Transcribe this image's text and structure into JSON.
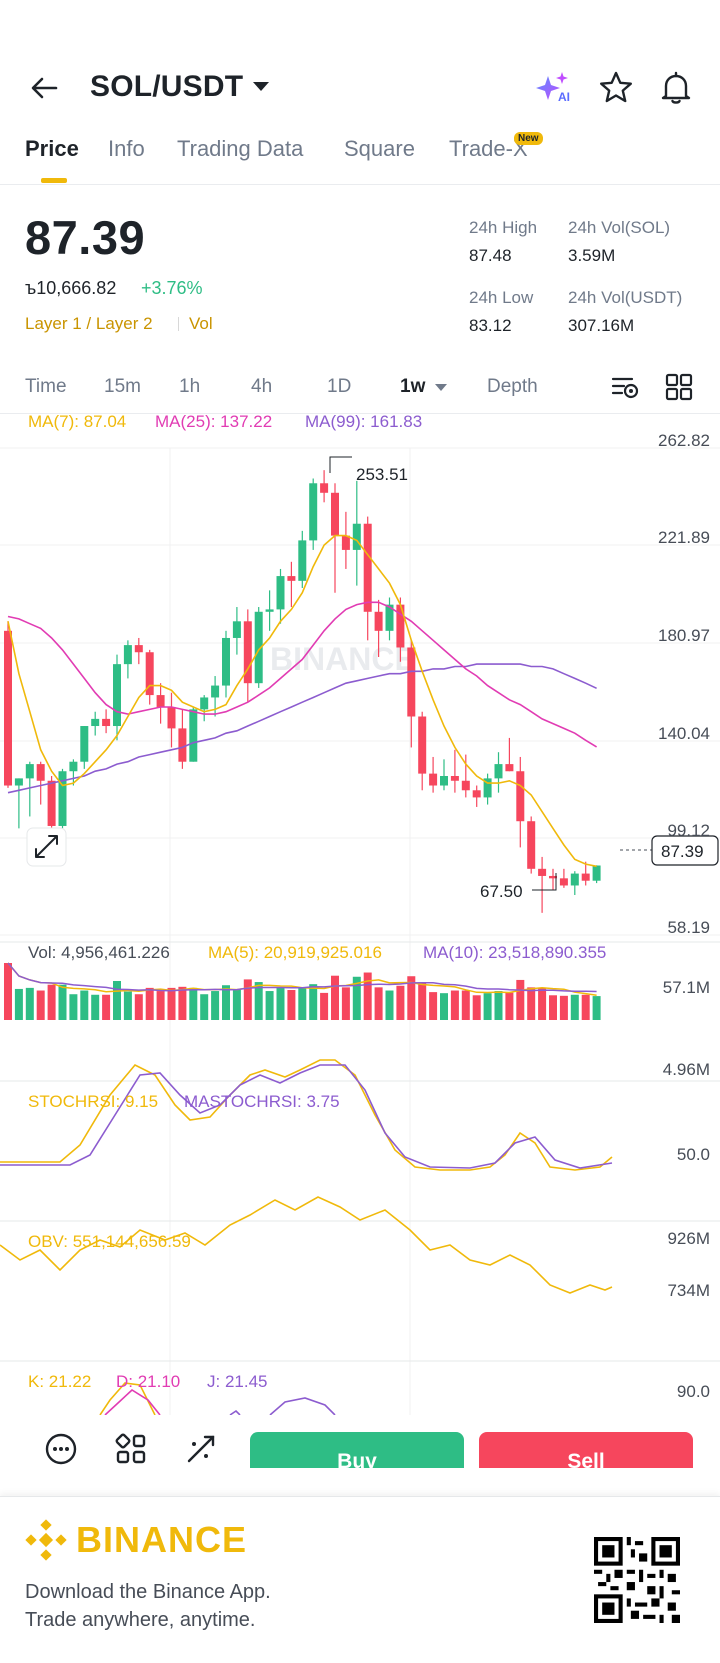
{
  "header": {
    "title": "SOL/USDT",
    "ai_label": "AI"
  },
  "tabs": [
    {
      "label": "Price"
    },
    {
      "label": "Info"
    },
    {
      "label": "Trading Data"
    },
    {
      "label": "Square"
    },
    {
      "label": "Trade-X"
    }
  ],
  "new_badge": "New",
  "price": {
    "last": "87.39",
    "local": "ъ10,666.82",
    "change": "+3.76%",
    "tag_layer": "Layer 1 / Layer 2",
    "tag_vol": "Vol"
  },
  "stats": {
    "high_label": "24h High",
    "high_value": "87.48",
    "vol_sol_label": "24h Vol(SOL)",
    "vol_sol_value": "3.59M",
    "low_label": "24h Low",
    "low_value": "83.12",
    "vol_usdt_label": "24h Vol(USDT)",
    "vol_usdt_value": "307.16M"
  },
  "intervals": [
    {
      "label": "Time"
    },
    {
      "label": "15m"
    },
    {
      "label": "1h"
    },
    {
      "label": "4h"
    },
    {
      "label": "1D"
    },
    {
      "label": "1w"
    },
    {
      "label": "Depth"
    }
  ],
  "legend": {
    "ma7": "MA(7): 87.04",
    "ma25": "MA(25): 137.22",
    "ma99": "MA(99): 161.83",
    "vol": "Vol: 4,956,461.226",
    "vol_ma5": "MA(5): 20,919,925.016",
    "vol_ma10": "MA(10): 23,518,890.355",
    "stoch": "STOCHRSI: 9.15",
    "mastoch": "MASTOCHRSI: 3.75",
    "obv": "OBV: 551,144,656.59",
    "k": "K: 21.22",
    "d": "D: 21.10",
    "j": "J: 21.45"
  },
  "axis": {
    "price_ticks": [
      "262.82",
      "221.89",
      "180.97",
      "140.04",
      "99.12",
      "58.19"
    ],
    "vol_ticks": [
      "57.1M",
      "4.96M"
    ],
    "stoch_ticks": [
      "50.0"
    ],
    "obv_ticks": [
      "926M",
      "734M"
    ],
    "kdj_ticks": [
      "90.0"
    ]
  },
  "annotations": {
    "high": "253.51",
    "low": "67.50",
    "current": "87.39"
  },
  "watermark": "BINANCE",
  "actions": {
    "buy": "Buy",
    "sell": "Sell"
  },
  "footer": {
    "brand": "BINANCE",
    "line1": "Download the Binance App.",
    "line2": "Trade anywhere, anytime."
  },
  "colors": {
    "up": "#2ebd85",
    "down": "#f6465d",
    "ma7": "#f0b90b",
    "ma25": "#e13cb3",
    "ma99": "#8c5ccf",
    "brand": "#f0b90b"
  },
  "chart_data": {
    "type": "candlestick",
    "interval": "1w",
    "symbol": "SOL/USDT",
    "ylim": [
      58.19,
      262.82
    ],
    "high_marker": 253.51,
    "low_marker": 67.5,
    "candles": [
      [
        186,
        190,
        120,
        121
      ],
      [
        121,
        124,
        103,
        124
      ],
      [
        124,
        131,
        108,
        130
      ],
      [
        130,
        131,
        113,
        123
      ],
      [
        123,
        125,
        96,
        104
      ],
      [
        104,
        128,
        99,
        127
      ],
      [
        127,
        132,
        121,
        131
      ],
      [
        131,
        146,
        128,
        146
      ],
      [
        146,
        152,
        142,
        149
      ],
      [
        149,
        153,
        143,
        146
      ],
      [
        146,
        176,
        140,
        172
      ],
      [
        172,
        182,
        166,
        180
      ],
      [
        180,
        183,
        172,
        177
      ],
      [
        177,
        178,
        155,
        159
      ],
      [
        159,
        164,
        147,
        154
      ],
      [
        154,
        160,
        137,
        145
      ],
      [
        145,
        153,
        128,
        131
      ],
      [
        131,
        154,
        131,
        153
      ],
      [
        153,
        159,
        148,
        158
      ],
      [
        158,
        167,
        150,
        163
      ],
      [
        163,
        186,
        158,
        183
      ],
      [
        183,
        196,
        176,
        190
      ],
      [
        190,
        195,
        156,
        164
      ],
      [
        164,
        196,
        162,
        194
      ],
      [
        194,
        203,
        186,
        195
      ],
      [
        195,
        212,
        189,
        209
      ],
      [
        209,
        215,
        196,
        207
      ],
      [
        207,
        228,
        204,
        224
      ],
      [
        224,
        250,
        220,
        248
      ],
      [
        248,
        253.51,
        240,
        244
      ],
      [
        244,
        248,
        202,
        226
      ],
      [
        226,
        236,
        212,
        220
      ],
      [
        220,
        249,
        205,
        231
      ],
      [
        231,
        234,
        182,
        194
      ],
      [
        194,
        199,
        175,
        186
      ],
      [
        186,
        200,
        182,
        197
      ],
      [
        197,
        200,
        173,
        179
      ],
      [
        179,
        182,
        137,
        150
      ],
      [
        150,
        152,
        119,
        126
      ],
      [
        126,
        133,
        118,
        121
      ],
      [
        121,
        132,
        119,
        125
      ],
      [
        125,
        136,
        118,
        123
      ],
      [
        123,
        134,
        116,
        119
      ],
      [
        119,
        121,
        112,
        116
      ],
      [
        116,
        126,
        113,
        124
      ],
      [
        124,
        135,
        118,
        130
      ],
      [
        130,
        141,
        127,
        127
      ],
      [
        127,
        133,
        95,
        106
      ],
      [
        106,
        108,
        84,
        86
      ],
      [
        86,
        91,
        67.5,
        83
      ],
      [
        83,
        86,
        77,
        82
      ],
      [
        82,
        86,
        78,
        79
      ],
      [
        79,
        85,
        75,
        84
      ],
      [
        84,
        89,
        79,
        81
      ],
      [
        81,
        87.48,
        80,
        87.39
      ]
    ],
    "ma7": [
      190,
      168,
      152,
      136,
      127,
      121,
      122,
      126,
      131,
      136,
      142,
      150,
      158,
      163,
      163,
      161,
      156,
      154,
      152,
      153,
      155,
      163,
      170,
      178,
      183,
      190,
      195,
      202,
      213,
      222,
      226,
      226,
      224,
      218,
      212,
      206,
      197,
      182,
      169,
      157,
      146,
      137,
      130,
      125,
      122,
      122,
      123,
      121,
      117,
      110,
      103,
      96,
      90,
      88,
      87.04
    ],
    "ma25": [
      192,
      191,
      189,
      187,
      183,
      178,
      172,
      166,
      160,
      155,
      152,
      151,
      152,
      153,
      154,
      154,
      153,
      152,
      151,
      151,
      152,
      154,
      156,
      159,
      162,
      166,
      170,
      174,
      180,
      186,
      191,
      195,
      197,
      198,
      198,
      196,
      193,
      190,
      186,
      182,
      178,
      174,
      170,
      167,
      163,
      160,
      157,
      155,
      152,
      149,
      147,
      145,
      143,
      140,
      137.22
    ],
    "ma99": [
      118,
      119,
      120,
      121,
      122,
      123,
      124,
      125,
      127,
      128,
      130,
      131,
      133,
      134,
      135,
      136,
      137,
      139,
      140,
      141,
      143,
      144,
      146,
      148,
      150,
      152,
      154,
      156,
      158,
      160,
      162,
      164,
      165,
      166,
      167,
      168,
      168,
      169,
      169,
      170,
      170,
      171,
      171,
      172,
      172,
      172,
      172,
      172,
      171,
      171,
      170,
      168,
      166,
      164,
      161.83
    ]
  }
}
